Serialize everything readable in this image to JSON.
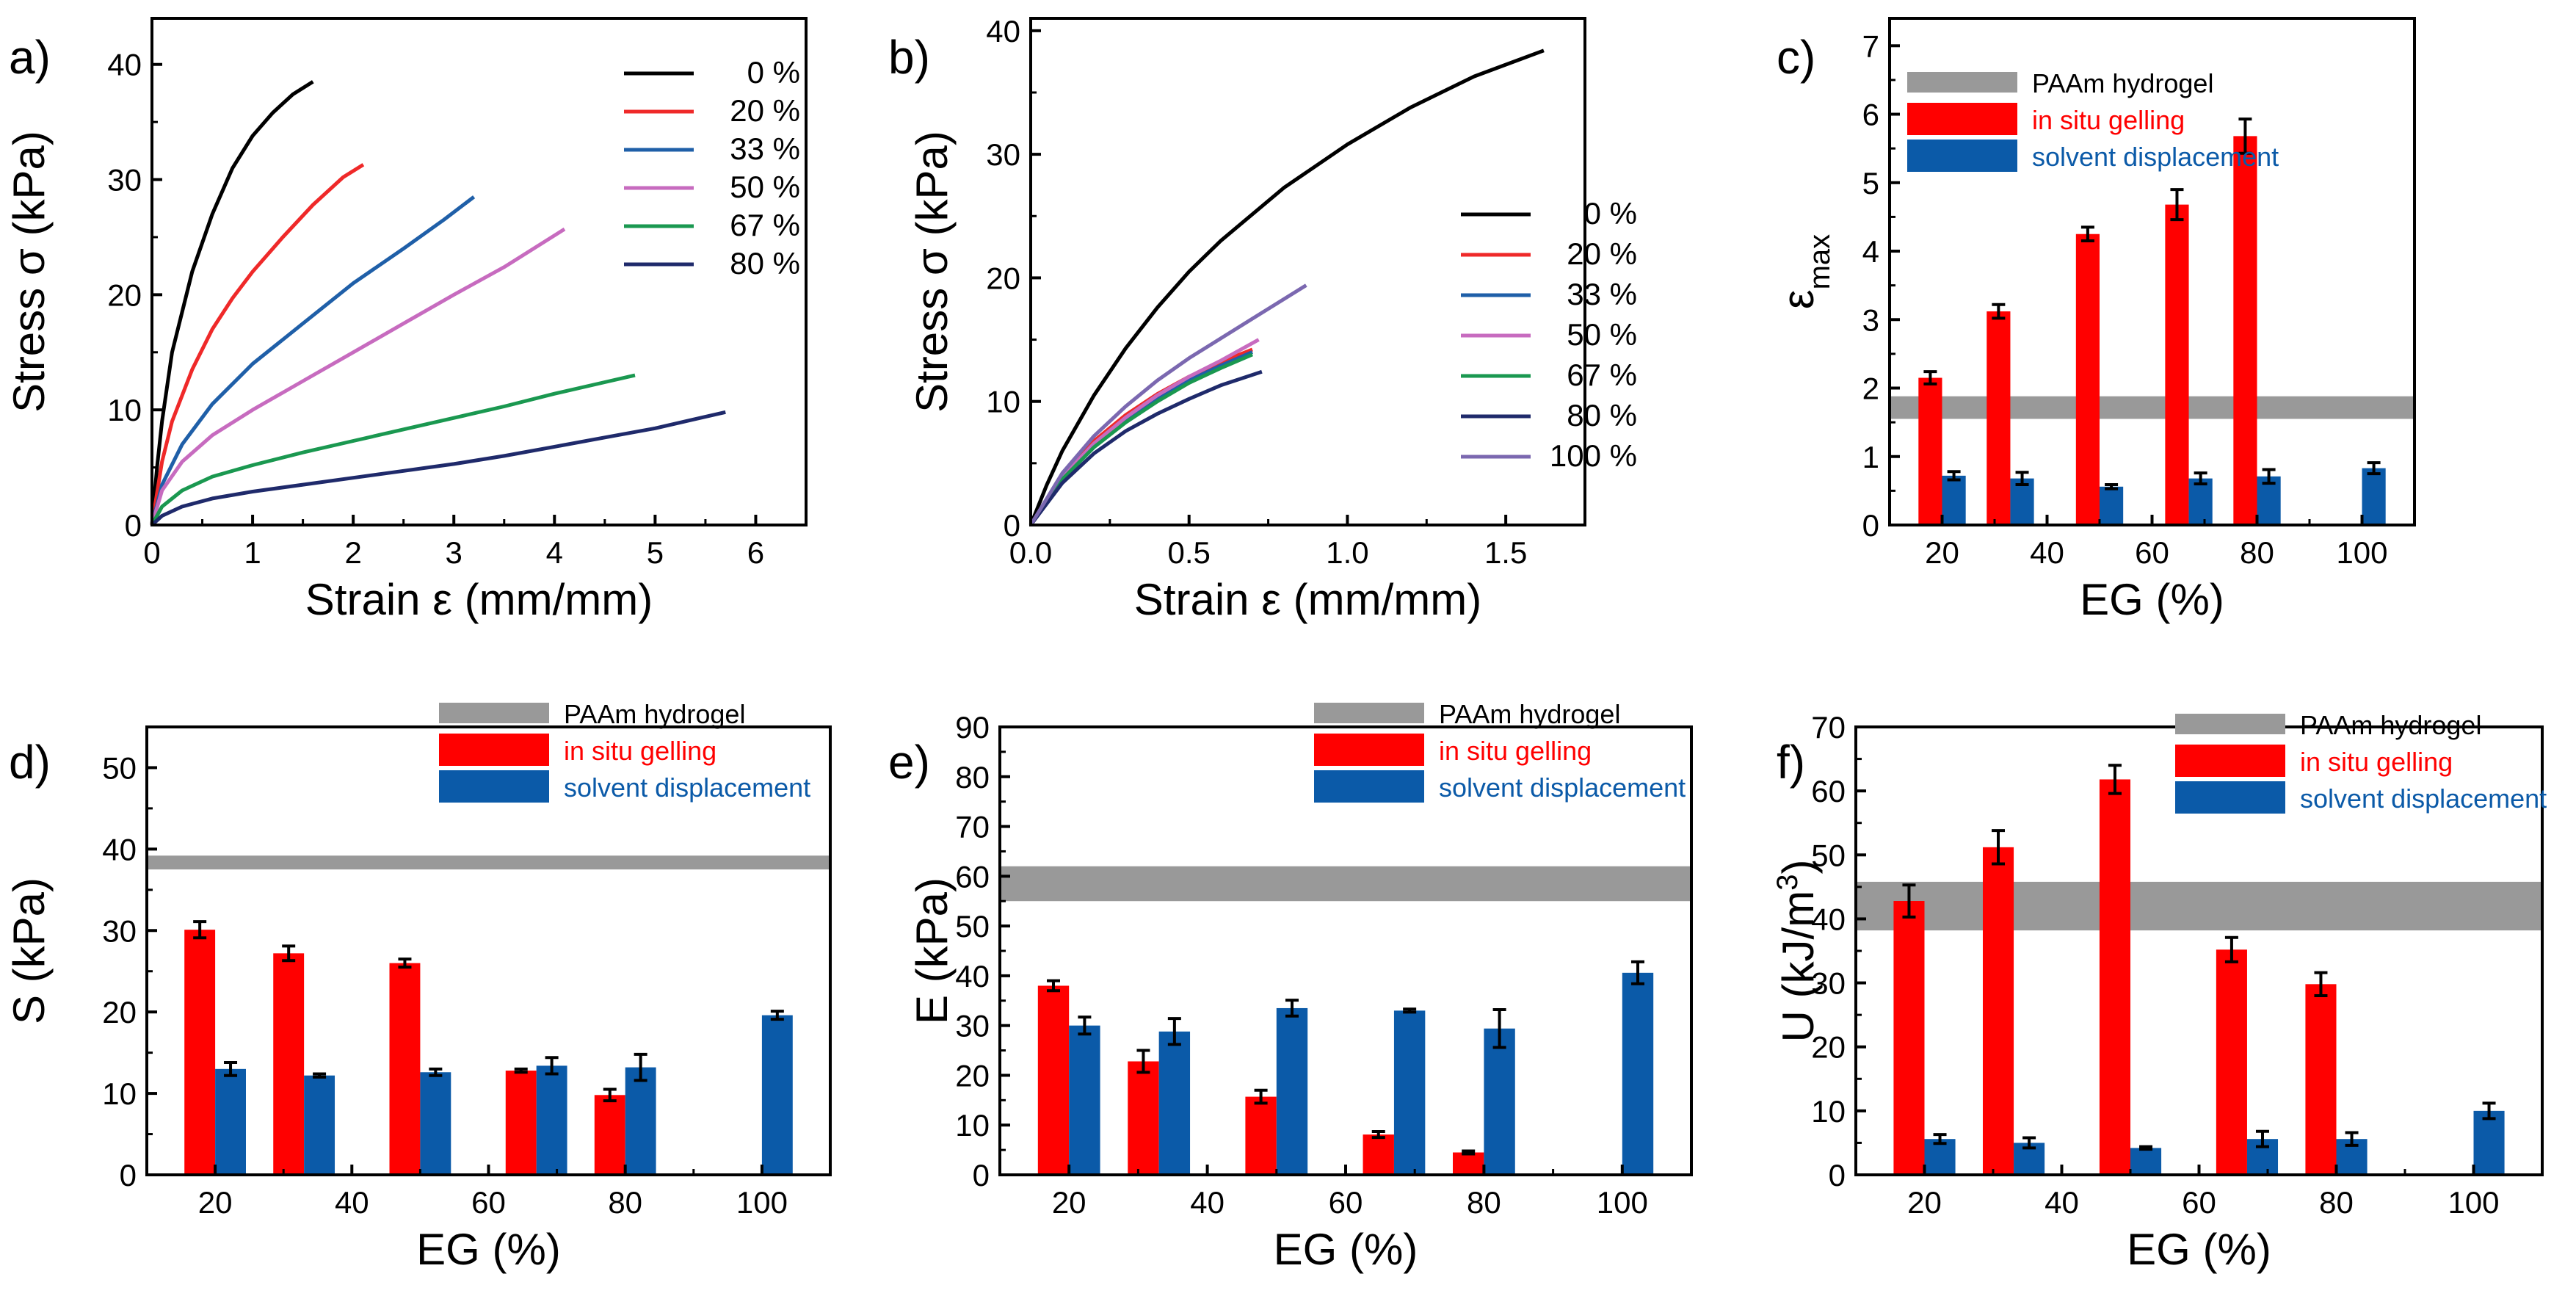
{
  "chart_data": [
    {
      "panel": "a)",
      "type": "line",
      "title": "",
      "xlabel": "Strain ε (mm/mm)",
      "ylabel": "Stress σ (kPa)",
      "xlim": [
        0,
        6.5
      ],
      "ylim": [
        0,
        44
      ],
      "xticks": [
        0,
        1,
        2,
        3,
        4,
        5,
        6
      ],
      "yticks": [
        0,
        10,
        20,
        30,
        40
      ],
      "xticklabels": [
        "0",
        "1",
        "2",
        "3",
        "4",
        "5",
        "6"
      ],
      "yticklabels": [
        "0",
        "10",
        "20",
        "30",
        "40"
      ],
      "legend_position": "top-right",
      "series": [
        {
          "name": "0 %",
          "color": "#000000",
          "x": [
            0,
            0.05,
            0.1,
            0.2,
            0.4,
            0.6,
            0.8,
            1.0,
            1.2,
            1.4,
            1.6
          ],
          "y": [
            0,
            5,
            9,
            15,
            22,
            27,
            31,
            33.8,
            35.8,
            37.4,
            38.5
          ]
        },
        {
          "name": "20 %",
          "color": "#ef2929",
          "x": [
            0,
            0.1,
            0.2,
            0.4,
            0.6,
            0.8,
            1.0,
            1.3,
            1.6,
            1.9,
            2.1
          ],
          "y": [
            0,
            5.5,
            9,
            13.5,
            17,
            19.7,
            22,
            25,
            27.8,
            30.2,
            31.3
          ]
        },
        {
          "name": "33 %",
          "color": "#1f5fa8",
          "x": [
            0,
            0.1,
            0.3,
            0.6,
            1.0,
            1.5,
            2.0,
            2.5,
            2.9,
            3.2
          ],
          "y": [
            0,
            3.5,
            7,
            10.5,
            14,
            17.5,
            21,
            24,
            26.5,
            28.5
          ]
        },
        {
          "name": "50 %",
          "color": "#c76bbf",
          "x": [
            0,
            0.1,
            0.3,
            0.6,
            1.0,
            1.5,
            2.0,
            2.5,
            3.0,
            3.5,
            4.1
          ],
          "y": [
            0,
            3,
            5.5,
            7.8,
            10,
            12.5,
            15,
            17.5,
            20,
            22.4,
            25.7
          ]
        },
        {
          "name": "67 %",
          "color": "#1a9850",
          "x": [
            0,
            0.1,
            0.3,
            0.6,
            1.0,
            1.5,
            2.0,
            2.5,
            3.0,
            3.5,
            4.0,
            4.5,
            4.8
          ],
          "y": [
            0,
            1.6,
            3,
            4.2,
            5.2,
            6.3,
            7.3,
            8.3,
            9.3,
            10.3,
            11.4,
            12.4,
            13
          ]
        },
        {
          "name": "80 %",
          "color": "#1f2a6b",
          "x": [
            0,
            0.1,
            0.3,
            0.6,
            1.0,
            1.5,
            2.0,
            2.5,
            3.0,
            3.5,
            4.0,
            4.5,
            5.0,
            5.4,
            5.7
          ],
          "y": [
            0,
            0.8,
            1.6,
            2.3,
            2.9,
            3.5,
            4.1,
            4.7,
            5.3,
            6,
            6.8,
            7.6,
            8.4,
            9.2,
            9.8
          ]
        }
      ]
    },
    {
      "panel": "b)",
      "type": "line",
      "title": "",
      "xlabel": "Strain ε (mm/mm)",
      "ylabel": "Stress σ (kPa)",
      "xlim": [
        0,
        1.75
      ],
      "ylim": [
        0,
        41
      ],
      "xticks": [
        0,
        0.5,
        1.0,
        1.5
      ],
      "yticks": [
        0,
        10,
        20,
        30,
        40
      ],
      "xticklabels": [
        "0.0",
        "0.5",
        "1.0",
        "1.5"
      ],
      "yticklabels": [
        "0",
        "10",
        "20",
        "30",
        "40"
      ],
      "legend_position": "right",
      "series": [
        {
          "name": "0 %",
          "color": "#000000",
          "x": [
            0,
            0.05,
            0.1,
            0.2,
            0.3,
            0.4,
            0.5,
            0.6,
            0.8,
            1.0,
            1.2,
            1.4,
            1.62
          ],
          "y": [
            0,
            3.2,
            6,
            10.5,
            14.3,
            17.6,
            20.5,
            23,
            27.3,
            30.8,
            33.8,
            36.3,
            38.4
          ]
        },
        {
          "name": "20 %",
          "color": "#ef2929",
          "x": [
            0,
            0.1,
            0.2,
            0.3,
            0.4,
            0.5,
            0.6,
            0.7
          ],
          "y": [
            0,
            4,
            6.8,
            8.9,
            10.6,
            12,
            13.2,
            14.2
          ]
        },
        {
          "name": "33 %",
          "color": "#1f5fa8",
          "x": [
            0,
            0.1,
            0.2,
            0.3,
            0.4,
            0.5,
            0.6,
            0.7
          ],
          "y": [
            0,
            3.8,
            6.5,
            8.6,
            10.3,
            11.7,
            12.9,
            14
          ]
        },
        {
          "name": "50 %",
          "color": "#c76bbf",
          "x": [
            0,
            0.1,
            0.2,
            0.3,
            0.4,
            0.5,
            0.6,
            0.72
          ],
          "y": [
            0,
            3.9,
            6.6,
            8.7,
            10.5,
            12,
            13.3,
            15
          ]
        },
        {
          "name": "67 %",
          "color": "#1a9850",
          "x": [
            0,
            0.1,
            0.2,
            0.3,
            0.4,
            0.5,
            0.6,
            0.7
          ],
          "y": [
            0,
            3.7,
            6.3,
            8.3,
            10,
            11.5,
            12.7,
            13.8
          ]
        },
        {
          "name": "80 %",
          "color": "#1f2a6b",
          "x": [
            0,
            0.1,
            0.2,
            0.3,
            0.4,
            0.5,
            0.6,
            0.73
          ],
          "y": [
            0,
            3.4,
            5.8,
            7.6,
            9,
            10.2,
            11.3,
            12.4
          ]
        },
        {
          "name": "100 %",
          "color": "#7b68b0",
          "x": [
            0,
            0.1,
            0.2,
            0.3,
            0.4,
            0.5,
            0.6,
            0.7,
            0.87
          ],
          "y": [
            0,
            4.2,
            7.2,
            9.6,
            11.7,
            13.5,
            15.1,
            16.7,
            19.4
          ]
        }
      ]
    },
    {
      "panel": "c)",
      "type": "bar",
      "title": "",
      "xlabel": "EG (%)",
      "ylabel": "ε",
      "ylabel_sub": "max",
      "xlim": [
        10,
        110
      ],
      "ylim": [
        0,
        7.4
      ],
      "xticks": [
        20,
        40,
        60,
        80,
        100
      ],
      "yticks": [
        0,
        1,
        2,
        3,
        4,
        5,
        6,
        7
      ],
      "xticklabels": [
        "20",
        "40",
        "60",
        "80",
        "100"
      ],
      "yticklabels": [
        "0",
        "1",
        "2",
        "3",
        "4",
        "5",
        "6",
        "7"
      ],
      "legend_position": "top",
      "band": {
        "name": "PAAm hydrogel",
        "low": 1.55,
        "high": 1.88
      },
      "series": [
        {
          "name": "in situ gelling",
          "color": "#ff0000",
          "x": [
            20,
            33,
            50,
            67,
            80
          ],
          "values": [
            2.15,
            3.12,
            4.25,
            4.68,
            5.68
          ],
          "errors": [
            0.09,
            0.1,
            0.1,
            0.22,
            0.25
          ]
        },
        {
          "name": "solvent displacement",
          "color": "#0b5aa8",
          "x": [
            20,
            33,
            50,
            67,
            80,
            100
          ],
          "values": [
            0.72,
            0.68,
            0.56,
            0.68,
            0.71,
            0.83
          ],
          "errors": [
            0.06,
            0.09,
            0.03,
            0.08,
            0.1,
            0.08
          ]
        }
      ]
    },
    {
      "panel": "d)",
      "type": "bar",
      "title": "",
      "xlabel": "EG (%)",
      "ylabel": "S (kPa)",
      "xlim": [
        10,
        110
      ],
      "ylim": [
        0,
        55
      ],
      "xticks": [
        20,
        40,
        60,
        80,
        100
      ],
      "yticks": [
        0,
        10,
        20,
        30,
        40,
        50
      ],
      "xticklabels": [
        "20",
        "40",
        "60",
        "80",
        "100"
      ],
      "yticklabels": [
        "0",
        "10",
        "20",
        "30",
        "40",
        "50"
      ],
      "legend_position": "top-right",
      "band": {
        "name": "PAAm hydrogel",
        "low": 37.5,
        "high": 39.2
      },
      "series": [
        {
          "name": "in situ gelling",
          "color": "#ff0000",
          "x": [
            20,
            33,
            50,
            67,
            80
          ],
          "values": [
            30.1,
            27.2,
            26.0,
            12.8,
            9.8
          ],
          "errors": [
            1.0,
            0.9,
            0.5,
            0.2,
            0.7
          ]
        },
        {
          "name": "solvent displacement",
          "color": "#0b5aa8",
          "x": [
            20,
            33,
            50,
            67,
            80,
            100
          ],
          "values": [
            13.0,
            12.2,
            12.6,
            13.4,
            13.2,
            19.6
          ],
          "errors": [
            0.8,
            0.2,
            0.4,
            1.0,
            1.6,
            0.5
          ]
        }
      ]
    },
    {
      "panel": "e)",
      "type": "bar",
      "title": "",
      "xlabel": "EG (%)",
      "ylabel": "E (kPa)",
      "xlim": [
        10,
        110
      ],
      "ylim": [
        0,
        90
      ],
      "xticks": [
        20,
        40,
        60,
        80,
        100
      ],
      "yticks": [
        0,
        10,
        20,
        30,
        40,
        50,
        60,
        70,
        80,
        90
      ],
      "xticklabels": [
        "20",
        "40",
        "60",
        "80",
        "100"
      ],
      "yticklabels": [
        "0",
        "10",
        "20",
        "30",
        "40",
        "50",
        "60",
        "70",
        "80",
        "90"
      ],
      "legend_position": "top-right",
      "band": {
        "name": "PAAm hydrogel",
        "low": 55,
        "high": 62
      },
      "series": [
        {
          "name": "in situ gelling",
          "color": "#ff0000",
          "x": [
            20,
            33,
            50,
            67,
            80
          ],
          "values": [
            38.0,
            22.8,
            15.7,
            8.1,
            4.5
          ],
          "errors": [
            1.0,
            2.2,
            1.3,
            0.6,
            0.3
          ]
        },
        {
          "name": "solvent displacement",
          "color": "#0b5aa8",
          "x": [
            20,
            33,
            50,
            67,
            80,
            100
          ],
          "values": [
            30.0,
            28.8,
            33.5,
            33.0,
            29.4,
            40.6
          ],
          "errors": [
            1.7,
            2.6,
            1.6,
            0.3,
            3.8,
            2.2
          ]
        }
      ]
    },
    {
      "panel": "f)",
      "type": "bar",
      "title": "",
      "xlabel": "EG (%)",
      "ylabel": "U (kJ/m",
      "ylabel_sup": "3",
      "ylabel_end": ")",
      "xlim": [
        10,
        110
      ],
      "ylim": [
        0,
        70
      ],
      "xticks": [
        20,
        40,
        60,
        80,
        100
      ],
      "yticks": [
        0,
        10,
        20,
        30,
        40,
        50,
        60,
        70
      ],
      "xticklabels": [
        "20",
        "40",
        "60",
        "80",
        "100"
      ],
      "yticklabels": [
        "0",
        "10",
        "20",
        "30",
        "40",
        "50",
        "60",
        "70"
      ],
      "legend_position": "top-right",
      "band": {
        "name": "PAAm hydrogel",
        "low": 38.2,
        "high": 45.8
      },
      "series": [
        {
          "name": "in situ gelling",
          "color": "#ff0000",
          "x": [
            20,
            33,
            50,
            67,
            80
          ],
          "values": [
            42.8,
            51.2,
            61.8,
            35.2,
            29.8
          ],
          "errors": [
            2.5,
            2.6,
            2.2,
            1.9,
            1.8
          ]
        },
        {
          "name": "solvent displacement",
          "color": "#0b5aa8",
          "x": [
            20,
            33,
            50,
            67,
            80,
            100
          ],
          "values": [
            5.6,
            5.0,
            4.2,
            5.6,
            5.6,
            10.0
          ],
          "errors": [
            0.7,
            0.8,
            0.2,
            1.2,
            1.0,
            1.2
          ]
        }
      ]
    }
  ],
  "band_color": "#999999"
}
